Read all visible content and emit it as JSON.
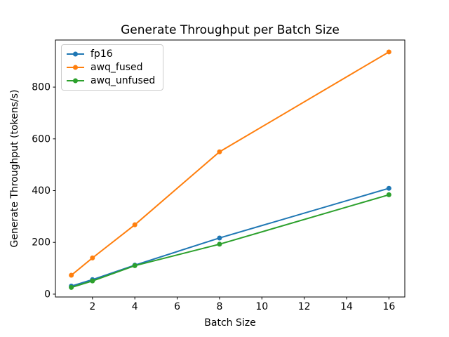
{
  "figure": {
    "background": "#ffffff"
  },
  "chart_data": {
    "type": "line",
    "title": "Generate Throughput per Batch Size",
    "xlabel": "Batch Size",
    "ylabel": "Generate Throughput (tokens/s)",
    "x": [
      1,
      2,
      4,
      8,
      16
    ],
    "series": [
      {
        "name": "fp16",
        "color": "#1f77b4",
        "values": [
          31,
          56,
          112,
          217,
          409
        ]
      },
      {
        "name": "awq_fused",
        "color": "#ff7f0e",
        "values": [
          73,
          140,
          268,
          550,
          936
        ]
      },
      {
        "name": "awq_unfused",
        "color": "#2ca02c",
        "values": [
          26,
          51,
          110,
          193,
          384
        ]
      }
    ],
    "xticks": [
      2,
      4,
      6,
      8,
      10,
      12,
      14,
      16
    ],
    "yticks": [
      0,
      200,
      400,
      600,
      800
    ],
    "xlim": [
      0.25,
      16.75
    ],
    "ylim": [
      -11,
      982
    ],
    "grid": false,
    "legend_position": "upper left",
    "marker": "o",
    "marker_radius": 3.5,
    "line_width": 2,
    "axis_color": "#000000",
    "text_color": "#000000"
  }
}
